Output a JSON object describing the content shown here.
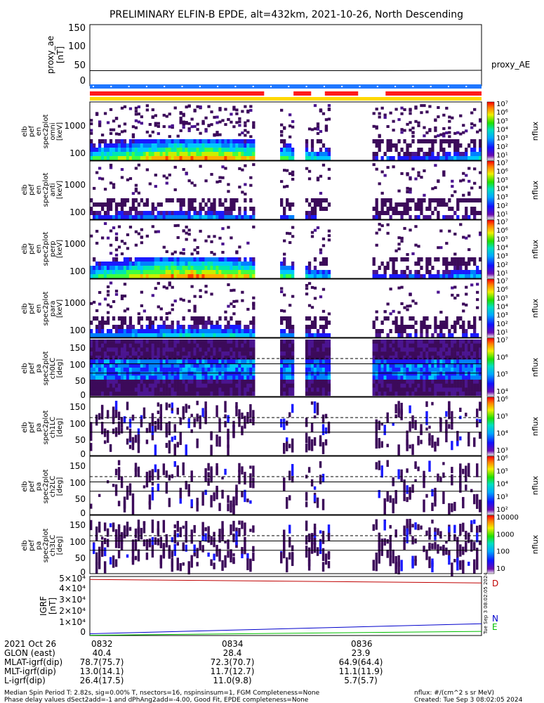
{
  "title": "PRELIMINARY ELFIN-B EPDE, alt=432km, 2021-10-26, North Descending",
  "panels": {
    "ae": {
      "ylabel_lines": [
        "proxy_ae",
        "[nT]"
      ],
      "ticks": [
        "150",
        "100",
        "50",
        "0"
      ],
      "right_label": "proxy_AE"
    },
    "energy": [
      {
        "ylabel_lines": [
          "elb",
          "pef",
          "en",
          "spec2plot",
          "omni",
          "[keV]"
        ],
        "ticks": [
          "1000",
          "100"
        ]
      },
      {
        "ylabel_lines": [
          "elb",
          "pef",
          "en",
          "spec2plot",
          "anti",
          "[keV]"
        ],
        "ticks": [
          "1000",
          "100"
        ]
      },
      {
        "ylabel_lines": [
          "elb",
          "pef",
          "en",
          "spec2plot",
          "perp",
          "[keV]"
        ],
        "ticks": [
          "1000",
          "100"
        ]
      },
      {
        "ylabel_lines": [
          "elb",
          "pef",
          "en",
          "spec2plot",
          "para",
          "[keV]"
        ],
        "ticks": [
          "1000",
          "100"
        ]
      }
    ],
    "pitch": [
      {
        "ylabel_lines": [
          "elb",
          "pef",
          "pa",
          "spec2plot",
          "ch0LC",
          "[deg]"
        ],
        "ticks": [
          "150",
          "100",
          "50",
          "0"
        ]
      },
      {
        "ylabel_lines": [
          "elb",
          "pef",
          "pa",
          "spec2plot",
          "ch1LC",
          "[deg]"
        ],
        "ticks": [
          "150",
          "100",
          "50",
          "0"
        ]
      },
      {
        "ylabel_lines": [
          "elb",
          "pef",
          "pa",
          "spec2plot",
          "ch2LC",
          "[deg]"
        ],
        "ticks": [
          "150",
          "100",
          "50",
          "0"
        ]
      },
      {
        "ylabel_lines": [
          "elb",
          "pef",
          "pa",
          "spec2plot",
          "ch3LC",
          "[deg]"
        ],
        "ticks": [
          "150",
          "100",
          "50",
          "0"
        ]
      }
    ],
    "igrf": {
      "ylabel_lines": [
        "IGRF",
        "[nT]"
      ],
      "ticks": [
        "5×10⁴",
        "4×10⁴",
        "3×10⁴",
        "2×10⁴",
        "1×10⁴",
        "0"
      ],
      "labels": [
        "D",
        "N",
        "E"
      ],
      "vertical_stamp": "Tue Sep  3 08:02:05 2024"
    }
  },
  "colorbars": [
    {
      "ticks": [
        "10⁷",
        "10⁶",
        "10⁵",
        "10⁴",
        "10³",
        "10²",
        "10¹"
      ],
      "unit": "nflux"
    },
    {
      "ticks": [
        "10⁷",
        "10⁶",
        "10⁵",
        "10⁴",
        "10³",
        "10²",
        "10¹"
      ],
      "unit": "nflux"
    },
    {
      "ticks": [
        "10⁷",
        "10⁶",
        "10⁵",
        "10⁴",
        "10³",
        "10²",
        "10¹"
      ],
      "unit": "nflux"
    },
    {
      "ticks": [
        "10⁷",
        "10⁶",
        "10⁵",
        "10⁴",
        "10³",
        "10²",
        "10¹"
      ],
      "unit": "nflux"
    },
    {
      "ticks": [
        "10⁷",
        "10⁶",
        "10⁵",
        "10⁴"
      ],
      "unit": "nflux"
    },
    {
      "ticks": [
        "10⁶",
        "10⁵",
        "10⁴",
        "10³"
      ],
      "unit": "nflux"
    },
    {
      "ticks": [
        "10⁶",
        "10⁵",
        "10⁴",
        "10³",
        "10²"
      ],
      "unit": "nflux"
    },
    {
      "ticks": [
        "10000",
        "1000",
        "100",
        "10"
      ],
      "unit": "nflux"
    }
  ],
  "x_annotations": {
    "date": "2021 Oct 26",
    "times": [
      "0832",
      "0834",
      "0836"
    ],
    "rows": [
      {
        "label": "GLON (east)",
        "values": [
          "40.4",
          "28.4",
          "23.9"
        ]
      },
      {
        "label": "MLAT-igrf(dip)",
        "values": [
          "78.7(75.7)",
          "72.3(70.7)",
          "64.9(64.4)"
        ]
      },
      {
        "label": "MLT-igrf(dip)",
        "values": [
          "13.0(14.1)",
          "11.7(12.7)",
          "11.1(11.9)"
        ]
      },
      {
        "label": "L-igrf(dip)",
        "values": [
          "26.4(17.5)",
          "11.0(9.8)",
          "5.7(5.7)"
        ]
      }
    ]
  },
  "footer": {
    "line1_left": "Median Spin Period T: 2.82s, sig=0.00% T, nsectors=16, nspinsinsum=1, FGM Completeness=None",
    "line1_right": "nflux: #/(cm^2 s sr MeV)",
    "line2_left": "Phase delay values dSect2add=-1 and dPhAng2add=-4.00, Good Fit, EPDE completeness=None",
    "line2_right": "Created: Tue Sep  3 08:02:05 2024"
  },
  "colors": {
    "ae_line": "#000000",
    "bar_blue": "#1f77ff",
    "bar_red": "#ff1a1a",
    "bar_yellow": "#ffd800",
    "igrf_d": "#c00000",
    "igrf_n": "#0000cc",
    "igrf_e": "#00c000"
  },
  "chart_data": {
    "type": "heatmap",
    "title": "PRELIMINARY ELFIN-B EPDE, alt=432km, 2021-10-26, North Descending",
    "x_ticks": [
      "0832",
      "0834",
      "0836"
    ],
    "proxy_ae": {
      "ylim": [
        0,
        150
      ],
      "values_nT": [
        37,
        37,
        37,
        37,
        38
      ]
    },
    "igrf_nT": {
      "ylim": [
        0,
        50000
      ],
      "D": [
        47500,
        44500
      ],
      "N": [
        1500,
        10000
      ],
      "E": [
        200,
        3500
      ]
    },
    "energy_panels": {
      "ylim_keV": [
        60,
        7000
      ],
      "scale": "log"
    },
    "pitch_panels": {
      "ylim_deg": [
        0,
        180
      ]
    },
    "colorbar_scale": "log",
    "data_coverage_x": [
      [
        0.0,
        0.42
      ],
      [
        0.485,
        0.52
      ],
      [
        0.545,
        0.61
      ],
      [
        0.72,
        1.0
      ]
    ]
  }
}
